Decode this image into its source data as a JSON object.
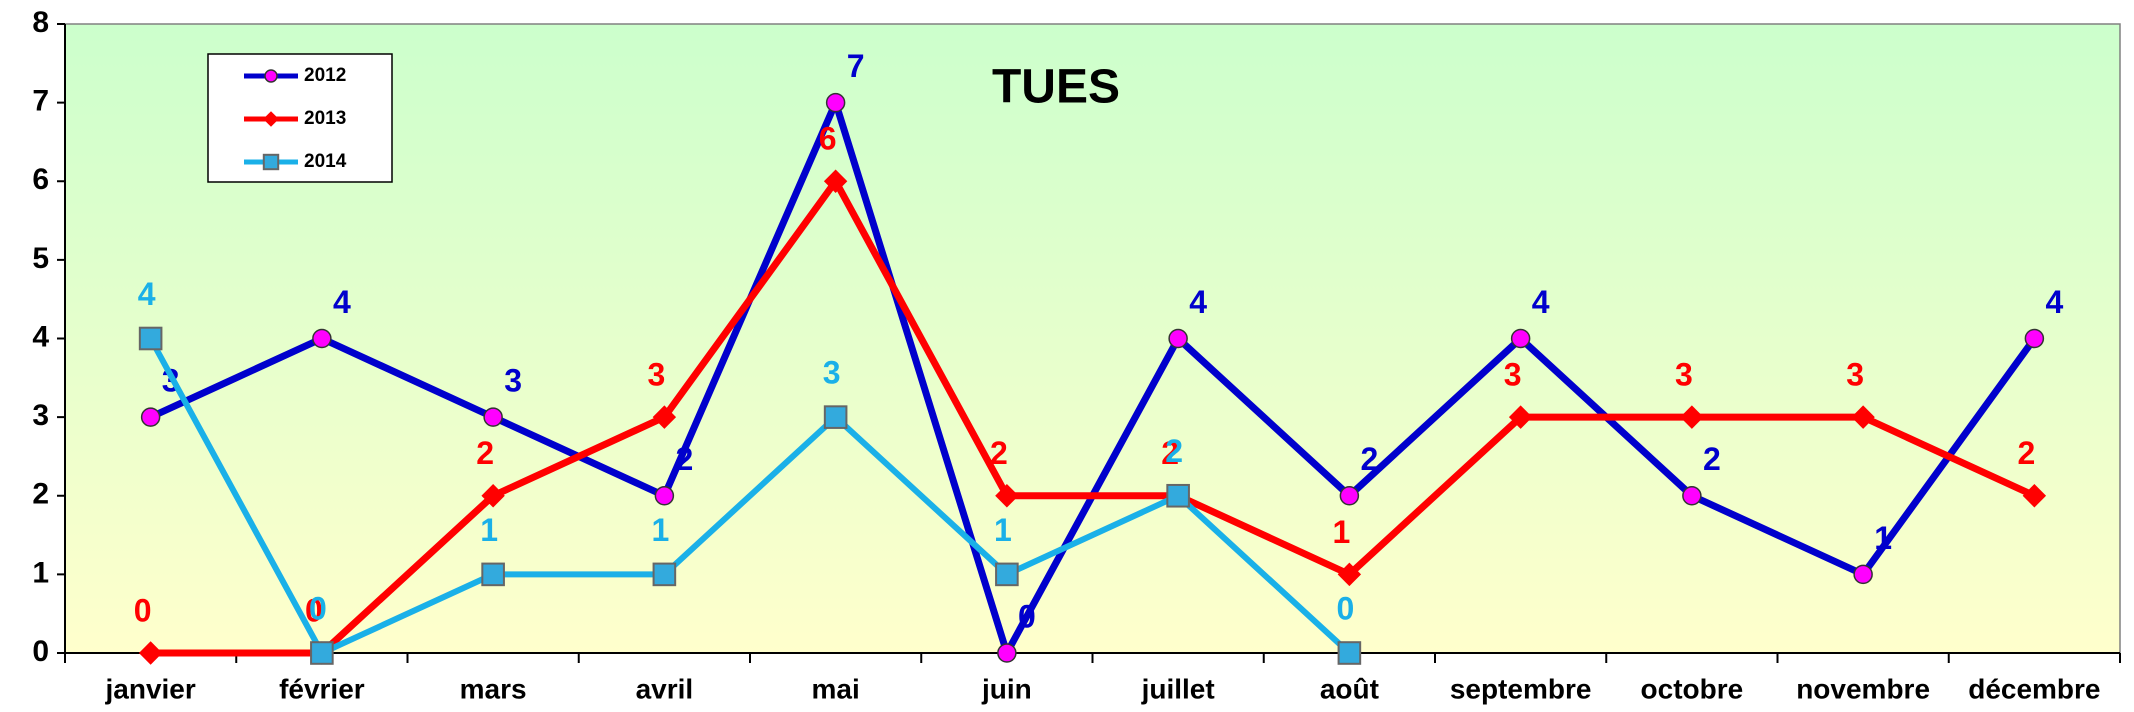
{
  "chart_data": {
    "type": "line",
    "title": "TUES",
    "categories": [
      "janvier",
      "février",
      "mars",
      "avril",
      "mai",
      "juin",
      "juillet",
      "août",
      "septembre",
      "octobre",
      "novembre",
      "décembre"
    ],
    "series": [
      {
        "name": "2012",
        "color": "#0000cc",
        "marker": "circle",
        "marker_color": "#ff00ff",
        "values": [
          3,
          4,
          3,
          2,
          7,
          0,
          4,
          2,
          4,
          2,
          1,
          4
        ]
      },
      {
        "name": "2013",
        "color": "#ff0000",
        "marker": "diamond",
        "marker_color": "#ff0000",
        "values": [
          0,
          0,
          2,
          3,
          6,
          2,
          2,
          1,
          3,
          3,
          3,
          2
        ]
      },
      {
        "name": "2014",
        "color": "#1ab0e8",
        "marker": "square",
        "marker_color": "#33aadd",
        "values": [
          4,
          0,
          1,
          1,
          3,
          1,
          2,
          0,
          null,
          null,
          null,
          null
        ]
      }
    ],
    "ylim": [
      0,
      8
    ],
    "yticks": [
      0,
      1,
      2,
      3,
      4,
      5,
      6,
      7,
      8
    ],
    "grid": false,
    "legend": "upper left"
  }
}
